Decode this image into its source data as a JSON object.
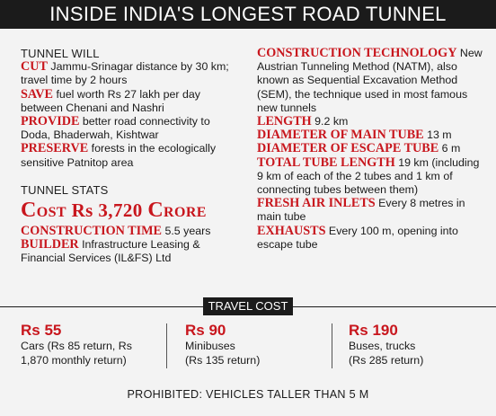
{
  "title": "INSIDE INDIA'S LONGEST ROAD TUNNEL",
  "tunnel_will": {
    "heading": "TUNNEL WILL",
    "items": [
      {
        "key": "CUT",
        "text": " Jammu-Srinagar distance by 30 km; travel time by 2 hours"
      },
      {
        "key": "SAVE",
        "text": " fuel worth Rs 27 lakh per day between Chenani and Nashri"
      },
      {
        "key": "PROVIDE",
        "text": " better road connectivity to Doda, Bhaderwah, Kishtwar"
      },
      {
        "key": "PRESERVE",
        "text": " forests in the ecologically sensitive Patnitop area"
      }
    ]
  },
  "tunnel_stats": {
    "heading": "TUNNEL STATS",
    "cost_c": "C",
    "cost_ost": "OST",
    "cost_rs": "Rs",
    "cost_value": "3,720",
    "cost_c2": "C",
    "cost_rore": "RORE",
    "items": [
      {
        "key": "CONSTRUCTION TIME",
        "text": " 5.5 years"
      },
      {
        "key": "BUILDER",
        "text": " Infrastructure Leasing & Financial Services (IL&FS) Ltd"
      }
    ]
  },
  "right_items": [
    {
      "key": "CONSTRUCTION TECHNOLOGY",
      "text": " New Austrian Tunneling Method (NATM), also known as Sequential Excavation Method (SEM), the technique used in most famous new tunnels"
    },
    {
      "key": "LENGTH",
      "text": " 9.2 km"
    },
    {
      "key": "DIAMETER OF MAIN TUBE",
      "text": " 13 m"
    },
    {
      "key": "DIAMETER OF ESCAPE TUBE",
      "text": " 6 m"
    },
    {
      "key": "TOTAL TUBE LENGTH",
      "text": " 19 km (including 9 km of each of the 2 tubes and 1 km of connecting tubes between them)"
    },
    {
      "key": "FRESH AIR INLETS",
      "text": " Every 8 metres in main tube"
    },
    {
      "key": "EXHAUSTS",
      "text": " Every 100 m, opening into escape tube"
    }
  ],
  "travel_cost": {
    "label": "TRAVEL COST",
    "fares": [
      {
        "amount": "Rs 55",
        "line1": "Cars (Rs 85 return, Rs",
        "line2": "1,870 monthly return)"
      },
      {
        "amount": "Rs 90",
        "line1": "Minibuses",
        "line2": "(Rs 135 return)"
      },
      {
        "amount": "Rs 190",
        "line1": "Buses, trucks",
        "line2": "(Rs 285 return)"
      }
    ]
  },
  "prohibited": "PROHIBITED: VEHICLES TALLER THAN 5 M",
  "colors": {
    "accent": "#c8161d",
    "bar": "#1b1b1b",
    "background": "#f3f3f3"
  }
}
